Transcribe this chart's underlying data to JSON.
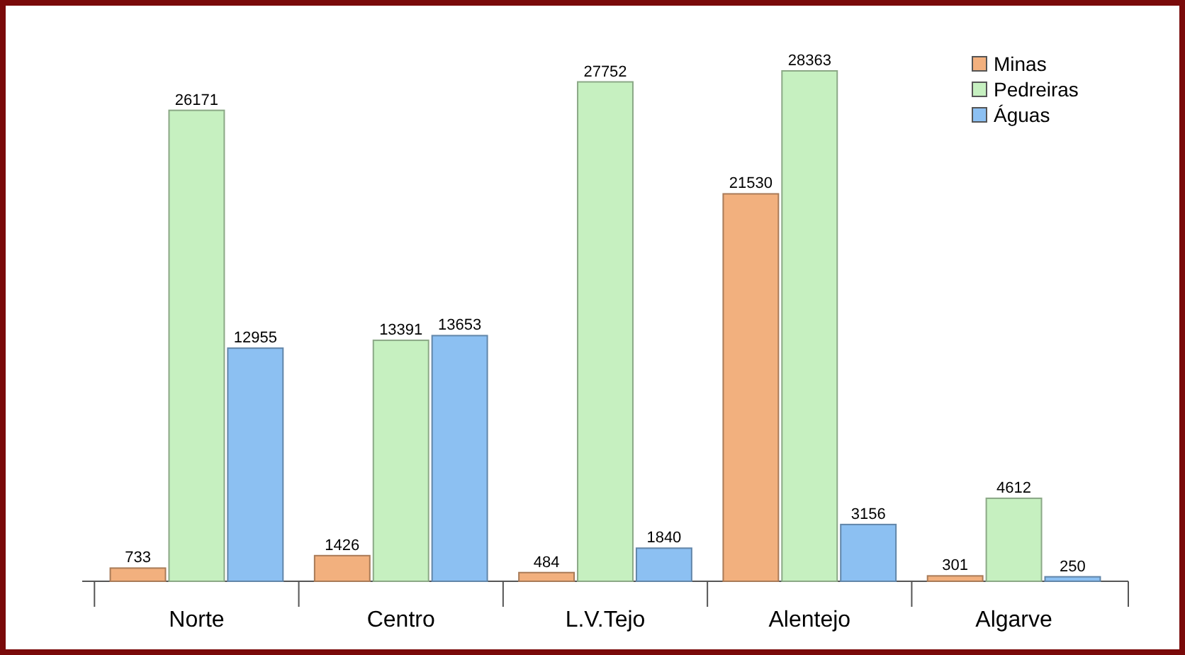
{
  "chart_data": {
    "type": "bar",
    "categories": [
      "Norte",
      "Centro",
      "L.V.Tejo",
      "Alentejo",
      "Algarve"
    ],
    "series": [
      {
        "name": "Minas",
        "color": "#f2b07e",
        "values": [
          733,
          1426,
          484,
          21530,
          301
        ]
      },
      {
        "name": "Pedreiras",
        "color": "#c6f0c0",
        "values": [
          26171,
          13391,
          27752,
          28363,
          4612
        ]
      },
      {
        "name": "Águas",
        "color": "#8cc0f2",
        "values": [
          12955,
          13653,
          1840,
          3156,
          250
        ]
      }
    ],
    "data_labels": true,
    "legend": "top right"
  }
}
